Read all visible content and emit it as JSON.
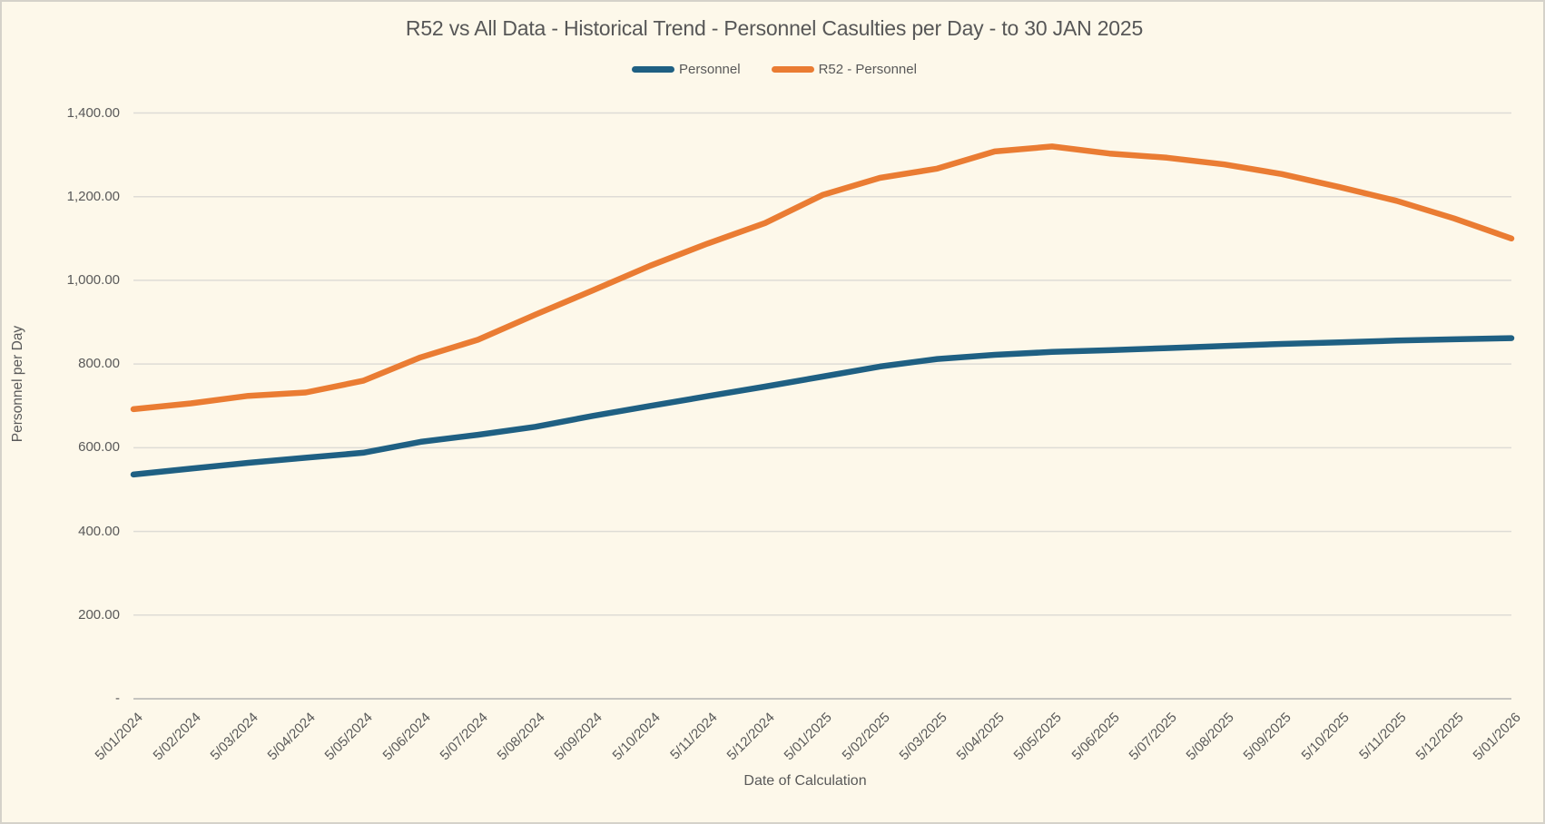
{
  "window": {
    "background_color": "#FDF8EA",
    "border_color": "#D5D2CA",
    "text_color": "#595959",
    "gridline_color": "#DEDCD6",
    "axisline_color": "#C6C5C0"
  },
  "chart_data": {
    "type": "line",
    "title": "R52 vs All Data - Historical Trend - Personnel Casulties per Day - to 30 JAN 2025",
    "xlabel": "Date of Calculation",
    "ylabel": "Personnel per Day",
    "legend_position": "top",
    "grid": "horizontal",
    "ylim": [
      0,
      1400
    ],
    "y_ticks": [
      {
        "label": "1,400.00",
        "value": 1400
      },
      {
        "label": "1,200.00",
        "value": 1200
      },
      {
        "label": "1,000.00",
        "value": 1000
      },
      {
        "label": "800.00",
        "value": 800
      },
      {
        "label": "600.00",
        "value": 600
      },
      {
        "label": "400.00",
        "value": 400
      },
      {
        "label": "200.00",
        "value": 200
      },
      {
        "label": "-",
        "value": 0
      }
    ],
    "categories": [
      "5/01/2024",
      "5/02/2024",
      "5/03/2024",
      "5/04/2024",
      "5/05/2024",
      "5/06/2024",
      "5/07/2024",
      "5/08/2024",
      "5/09/2024",
      "5/10/2024",
      "5/11/2024",
      "5/12/2024",
      "5/01/2025",
      "5/02/2025",
      "5/03/2025",
      "5/04/2025",
      "5/05/2025",
      "5/06/2025",
      "5/07/2025",
      "5/08/2025",
      "5/09/2025",
      "5/10/2025",
      "5/11/2025",
      "5/12/2025",
      "5/01/2026"
    ],
    "series": [
      {
        "name": "Personnel",
        "color": "#1F6083",
        "values": [
          536,
          550,
          564,
          576,
          588,
          614,
          631,
          650,
          676,
          700,
          723,
          746,
          770,
          794,
          812,
          822,
          829,
          833,
          838,
          843,
          848,
          852,
          856,
          859,
          862
        ]
      },
      {
        "name": "R52 - Personnel",
        "color": "#EA7C33",
        "values": [
          692,
          706,
          724,
          732,
          760,
          816,
          858,
          918,
          976,
          1035,
          1088,
          1137,
          1204,
          1245,
          1267,
          1308,
          1320,
          1303,
          1293,
          1277,
          1254,
          1223,
          1190,
          1148,
          1100
        ]
      }
    ]
  }
}
